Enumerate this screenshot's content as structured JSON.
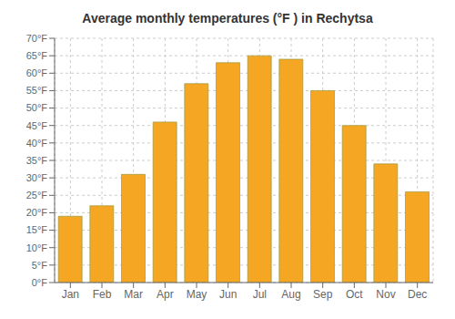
{
  "chart_data": {
    "type": "bar",
    "title": "Average monthly temperatures (°F ) in Rechytsa",
    "categories": [
      "Jan",
      "Feb",
      "Mar",
      "Apr",
      "May",
      "Jun",
      "Jul",
      "Aug",
      "Sep",
      "Oct",
      "Nov",
      "Dec"
    ],
    "values": [
      19,
      22,
      31,
      46,
      57,
      63,
      65,
      64,
      55,
      45,
      34,
      26
    ],
    "color": "#F5A623",
    "ylim": [
      0,
      70
    ],
    "yticks": [
      {
        "value": 0,
        "label": "0°F"
      },
      {
        "value": 5,
        "label": "5°F"
      },
      {
        "value": 10,
        "label": "10°F"
      },
      {
        "value": 15,
        "label": "15°F"
      },
      {
        "value": 20,
        "label": "20°F"
      },
      {
        "value": 25,
        "label": "25°F"
      },
      {
        "value": 30,
        "label": "30°F"
      },
      {
        "value": 35,
        "label": "35°F"
      },
      {
        "value": 40,
        "label": "40°F"
      },
      {
        "value": 45,
        "label": "45°F"
      },
      {
        "value": 50,
        "label": "50°F"
      },
      {
        "value": 55,
        "label": "55°F"
      },
      {
        "value": 60,
        "label": "60°F"
      },
      {
        "value": 65,
        "label": "65°F"
      },
      {
        "value": 70,
        "label": "70°F"
      }
    ],
    "grid": true
  }
}
